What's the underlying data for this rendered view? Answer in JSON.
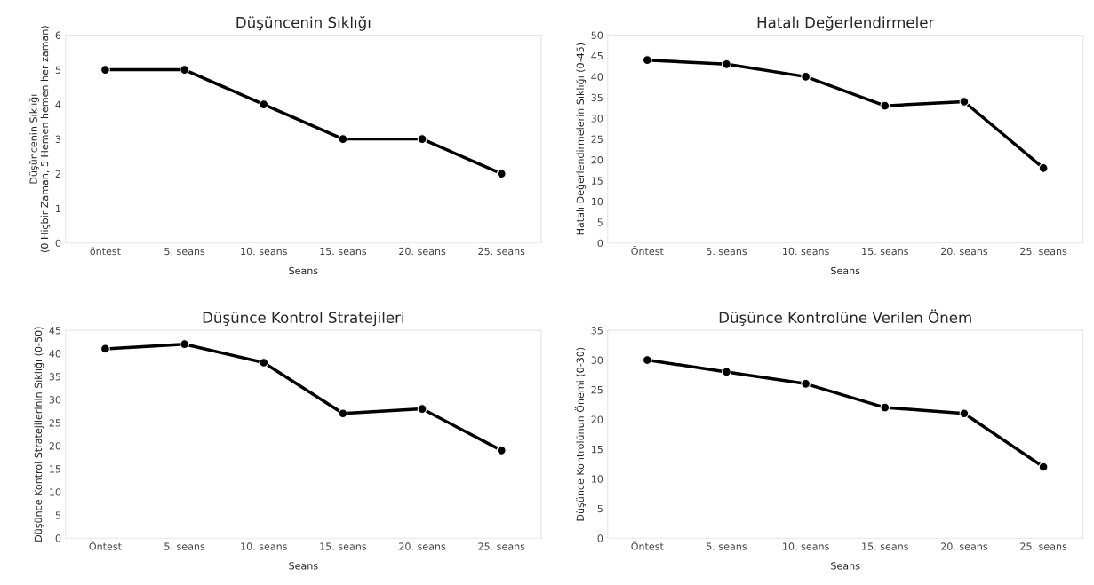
{
  "chart_data": [
    {
      "type": "line",
      "title": "Düşüncenin Sıklığı",
      "xlabel": "Seans",
      "ylabel": "Düşüncenin Sıklığı\n(0 Hiçbir Zaman, 5 Hemen hemen her zaman)",
      "categories": [
        "öntest",
        "5. seans",
        "10. seans",
        "15. seans",
        "20. seans",
        "25. seans"
      ],
      "series": [
        {
          "color": "#000000",
          "values": [
            5,
            5,
            4,
            3,
            3,
            2
          ]
        }
      ],
      "ylim": [
        0,
        6
      ],
      "yticks": [
        0,
        1,
        2,
        3,
        4,
        5,
        6
      ],
      "marker": "circle",
      "line_style": "solid",
      "grid": false,
      "legend": false
    },
    {
      "type": "line",
      "title": "Hatalı Değerlendirmeler",
      "xlabel": "Seans",
      "ylabel": "Hatalı Değerlendirmelerin Sıklığı (0-45)",
      "categories": [
        "Öntest",
        "5. seans",
        "10. seans",
        "15. seans",
        "20. seans",
        "25. seans"
      ],
      "series": [
        {
          "color": "#000000",
          "values": [
            44,
            43,
            40,
            33,
            34,
            18
          ]
        }
      ],
      "ylim": [
        0,
        50
      ],
      "yticks": [
        0,
        5,
        10,
        15,
        20,
        25,
        30,
        35,
        40,
        45,
        50
      ],
      "marker": "circle",
      "line_style": "solid",
      "grid": false,
      "legend": false
    },
    {
      "type": "line",
      "title": "Düşünce Kontrol Stratejileri",
      "xlabel": "Seans",
      "ylabel": "Düşünce Kontrol Stratejilerinin Sıklığı (0-50)",
      "categories": [
        "Öntest",
        "5. seans",
        "10. seans",
        "15. seans",
        "20. seans",
        "25. seans"
      ],
      "series": [
        {
          "color": "#000000",
          "values": [
            41,
            42,
            38,
            27,
            28,
            19
          ]
        }
      ],
      "ylim": [
        0,
        45
      ],
      "yticks": [
        0,
        5,
        10,
        15,
        20,
        25,
        30,
        35,
        40,
        45
      ],
      "marker": "circle",
      "line_style": "solid",
      "grid": false,
      "legend": false
    },
    {
      "type": "line",
      "title": "Düşünce Kontrolüne Verilen Önem",
      "xlabel": "Seans",
      "ylabel": "Düşünce Kontrolünun Önemi (0-30)",
      "categories": [
        "Öntest",
        "5. seans",
        "10. seans",
        "15. seans",
        "20. seans",
        "25. seans"
      ],
      "series": [
        {
          "color": "#000000",
          "values": [
            30,
            28,
            26,
            22,
            21,
            12
          ]
        }
      ],
      "ylim": [
        0,
        35
      ],
      "yticks": [
        0,
        5,
        10,
        15,
        20,
        25,
        30,
        35
      ],
      "marker": "circle",
      "line_style": "solid",
      "grid": false,
      "legend": false
    }
  ]
}
